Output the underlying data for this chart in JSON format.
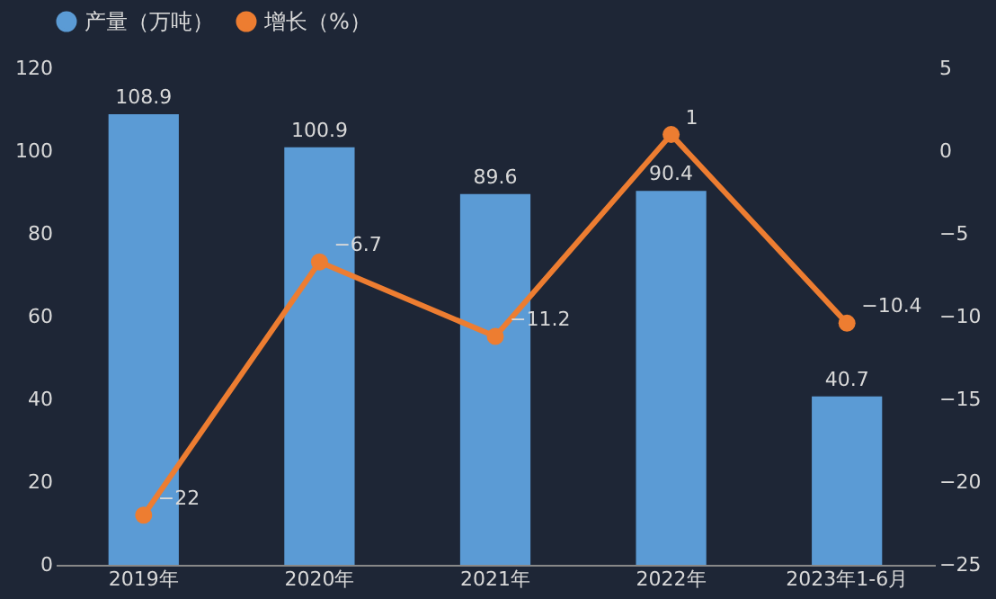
{
  "chart_data": {
    "type": "bar",
    "categories": [
      "2019年",
      "2020年",
      "2021年",
      "2022年",
      "2023年1-6月"
    ],
    "series": [
      {
        "name": "产量（万吨）",
        "color": "#5b9bd5",
        "values": [
          108.9,
          100.9,
          89.6,
          90.4,
          40.7
        ]
      },
      {
        "name": "增长（%）",
        "type": "line",
        "axis": "y2",
        "color": "#ed7d31",
        "values": [
          -22,
          -6.7,
          -11.2,
          1,
          -10.4
        ]
      }
    ],
    "ylim": [
      0,
      120
    ],
    "yticks": [
      0,
      20,
      40,
      60,
      80,
      100,
      120
    ],
    "y2lim": [
      -25,
      5
    ],
    "y2ticks": [
      -25,
      -20,
      -15,
      -10,
      -5,
      0,
      5
    ],
    "data_labels": true,
    "legend": "top",
    "marker": "circle",
    "grid": false
  }
}
